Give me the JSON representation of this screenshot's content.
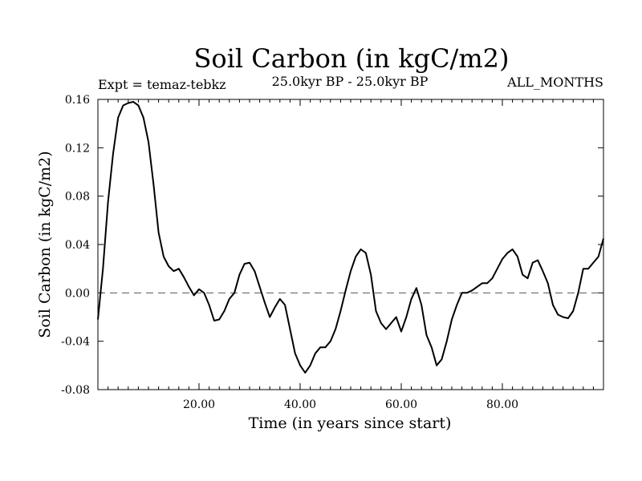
{
  "chart_data": {
    "type": "line",
    "title": "Soil Carbon (in kgC/m2)",
    "subtitle_left": "Expt = temaz-tebkz",
    "subtitle_center": "25.0kyr BP - 25.0kyr BP",
    "subtitle_right": "ALL_MONTHS",
    "xlabel": "Time (in years since start)",
    "ylabel": "Soil Carbon (in kgC/m2)",
    "xlim": [
      0,
      100
    ],
    "ylim": [
      -0.08,
      0.16
    ],
    "x_ticks": [
      20,
      40,
      60,
      80
    ],
    "x_tick_labels": [
      "20.00",
      "40.00",
      "60.00",
      "80.00"
    ],
    "y_ticks": [
      -0.08,
      -0.04,
      0.0,
      0.04,
      0.08,
      0.12,
      0.16
    ],
    "y_tick_labels": [
      "-0.08",
      "-0.04",
      "0.00",
      "0.04",
      "0.08",
      "0.12",
      "0.16"
    ],
    "reference_line": {
      "y": 0.0,
      "style": "dashed"
    },
    "series": [
      {
        "name": "Soil Carbon",
        "x": [
          0,
          1,
          2,
          3,
          4,
          5,
          6,
          7,
          8,
          9,
          10,
          11,
          12,
          13,
          14,
          15,
          16,
          17,
          18,
          19,
          20,
          21,
          22,
          23,
          24,
          25,
          26,
          27,
          28,
          29,
          30,
          31,
          32,
          33,
          34,
          35,
          36,
          37,
          38,
          39,
          40,
          41,
          42,
          43,
          44,
          45,
          46,
          47,
          48,
          49,
          50,
          51,
          52,
          53,
          54,
          55,
          56,
          57,
          58,
          59,
          60,
          61,
          62,
          63,
          64,
          65,
          66,
          67,
          68,
          69,
          70,
          71,
          72,
          73,
          74,
          75,
          76,
          77,
          78,
          79,
          80,
          81,
          82,
          83,
          84,
          85,
          86,
          87,
          88,
          89,
          90,
          91,
          92,
          93,
          94,
          95,
          96,
          97,
          98,
          99,
          100
        ],
        "y": [
          -0.022,
          0.02,
          0.075,
          0.115,
          0.145,
          0.155,
          0.157,
          0.158,
          0.155,
          0.145,
          0.125,
          0.09,
          0.05,
          0.03,
          0.022,
          0.018,
          0.02,
          0.013,
          0.005,
          -0.002,
          0.003,
          0.0,
          -0.01,
          -0.023,
          -0.022,
          -0.015,
          -0.005,
          0.0,
          0.015,
          0.024,
          0.025,
          0.018,
          0.005,
          -0.008,
          -0.02,
          -0.012,
          -0.005,
          -0.01,
          -0.03,
          -0.05,
          -0.06,
          -0.066,
          -0.06,
          -0.05,
          -0.045,
          -0.045,
          -0.04,
          -0.03,
          -0.015,
          0.002,
          0.018,
          0.03,
          0.036,
          0.033,
          0.015,
          -0.015,
          -0.025,
          -0.03,
          -0.025,
          -0.02,
          -0.032,
          -0.02,
          -0.005,
          0.004,
          -0.01,
          -0.035,
          -0.045,
          -0.06,
          -0.055,
          -0.04,
          -0.022,
          -0.01,
          0.0,
          0.0,
          0.002,
          0.005,
          0.008,
          0.008,
          0.012,
          0.02,
          0.028,
          0.033,
          0.036,
          0.03,
          0.015,
          0.012,
          0.025,
          0.027,
          0.018,
          0.008,
          -0.01,
          -0.018,
          -0.02,
          -0.021,
          -0.015,
          0.0,
          0.02,
          0.02,
          0.025,
          0.03,
          0.045
        ]
      }
    ]
  }
}
